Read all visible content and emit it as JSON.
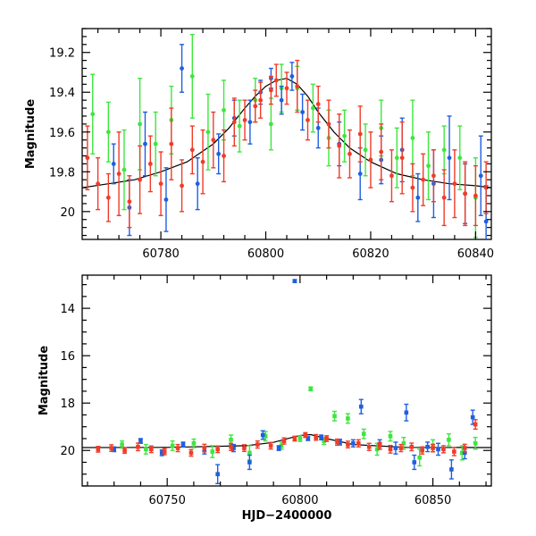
{
  "chart_data": [
    {
      "type": "scatter",
      "panel": "top",
      "title": "",
      "xlabel": "",
      "ylabel": "Magnitude",
      "xlim": [
        60765,
        60843
      ],
      "ylim": [
        20.14,
        19.08
      ],
      "y_inverted": true,
      "xticks": [
        60780,
        60800,
        60820,
        60840
      ],
      "xtick_labels": [
        "60780",
        "60800",
        "60820",
        "60840"
      ],
      "yticks": [
        19.2,
        19.4,
        19.6,
        19.8,
        20
      ],
      "ytick_labels": [
        "19.2",
        "19.4",
        "19.6",
        "19.8",
        "20"
      ],
      "grid": false,
      "colors": {
        "blue": "#1f5fe0",
        "green": "#3ee63e",
        "red": "#f03c28",
        "model": "#000000"
      },
      "model_curve": {
        "name": "",
        "x": [
          60765,
          60770,
          60775,
          60780,
          60785,
          60790,
          60793,
          60796,
          60798,
          60800,
          60802,
          60804,
          60806,
          60808,
          60810,
          60813,
          60816,
          60820,
          60825,
          60830,
          60835,
          60840,
          60843
        ],
        "y": [
          19.88,
          19.86,
          19.84,
          19.8,
          19.75,
          19.66,
          19.58,
          19.48,
          19.42,
          19.37,
          19.34,
          19.33,
          19.36,
          19.42,
          19.5,
          19.6,
          19.68,
          19.75,
          19.81,
          19.84,
          19.86,
          19.87,
          19.88
        ]
      },
      "series": [
        {
          "color": "blue",
          "x": [
            60771,
            60774,
            60777,
            60781,
            60784,
            60787,
            60791,
            60794,
            60797,
            60799,
            60801,
            60803,
            60805,
            60807,
            60810,
            60814,
            60818,
            60822,
            60826,
            60829,
            60832,
            60835,
            60838,
            60841,
            60842
          ],
          "y": [
            19.76,
            19.98,
            19.66,
            19.94,
            19.28,
            19.86,
            19.71,
            19.53,
            19.55,
            19.4,
            19.33,
            19.44,
            19.32,
            19.5,
            19.58,
            19.66,
            19.81,
            19.74,
            19.69,
            19.93,
            19.86,
            19.73,
            19.91,
            19.82,
            20.05
          ],
          "err": [
            0.1,
            0.14,
            0.16,
            0.16,
            0.12,
            0.13,
            0.1,
            0.09,
            0.11,
            0.06,
            0.05,
            0.07,
            0.07,
            0.09,
            0.1,
            0.11,
            0.13,
            0.12,
            0.16,
            0.12,
            0.17,
            0.21,
            0.15,
            0.2,
            0.18
          ]
        },
        {
          "color": "green",
          "x": [
            60767,
            60770,
            60773,
            60776,
            60779,
            60782,
            60786,
            60789,
            60792,
            60795,
            60798,
            60801,
            60803,
            60806,
            60809,
            60812,
            60815,
            60819,
            60822,
            60825,
            60828,
            60831,
            60834,
            60837,
            60840
          ],
          "y": [
            19.51,
            19.6,
            19.79,
            19.56,
            19.66,
            19.54,
            19.32,
            19.6,
            19.49,
            19.57,
            19.44,
            19.56,
            19.38,
            19.38,
            19.48,
            19.63,
            19.62,
            19.69,
            19.58,
            19.73,
            19.63,
            19.77,
            19.69,
            19.73,
            19.93
          ],
          "err": [
            0.2,
            0.15,
            0.2,
            0.23,
            0.16,
            0.17,
            0.21,
            0.19,
            0.15,
            0.13,
            0.11,
            0.13,
            0.12,
            0.11,
            0.12,
            0.14,
            0.13,
            0.13,
            0.14,
            0.15,
            0.19,
            0.17,
            0.12,
            0.16,
            0.2
          ]
        },
        {
          "color": "red",
          "x": [
            60766,
            60768,
            60770,
            60772,
            60774,
            60776,
            60778,
            60780,
            60782,
            60784,
            60786,
            60788,
            60790,
            60792,
            60794,
            60796,
            60798,
            60799,
            60801,
            60802,
            60804,
            60806,
            60808,
            60810,
            60812,
            60814,
            60816,
            60818,
            60820,
            60822,
            60824,
            60826,
            60828,
            60830,
            60832,
            60834,
            60836,
            60838,
            60840,
            60842
          ],
          "y": [
            19.73,
            19.86,
            19.93,
            19.81,
            19.95,
            19.84,
            19.76,
            19.86,
            19.66,
            19.87,
            19.69,
            19.75,
            19.64,
            19.72,
            19.55,
            19.54,
            19.47,
            19.44,
            19.39,
            19.34,
            19.38,
            19.37,
            19.54,
            19.46,
            19.56,
            19.67,
            19.71,
            19.61,
            19.74,
            19.7,
            19.82,
            19.73,
            19.88,
            19.84,
            19.82,
            19.93,
            19.86,
            19.91,
            19.92,
            19.88
          ],
          "err": [
            0.16,
            0.13,
            0.12,
            0.21,
            0.13,
            0.17,
            0.14,
            0.16,
            0.18,
            0.13,
            0.12,
            0.16,
            0.14,
            0.13,
            0.12,
            0.1,
            0.08,
            0.09,
            0.07,
            0.08,
            0.08,
            0.13,
            0.1,
            0.09,
            0.12,
            0.16,
            0.12,
            0.14,
            0.14,
            0.14,
            0.13,
            0.18,
            0.12,
            0.13,
            0.13,
            0.14,
            0.17,
            0.16,
            0.15,
            0.13
          ]
        }
      ]
    },
    {
      "type": "scatter",
      "panel": "bottom",
      "title": "",
      "xlabel": "HJD−2400000",
      "ylabel": "Magnitude",
      "xlim": [
        60718,
        60872
      ],
      "ylim": [
        21.5,
        12.6
      ],
      "y_inverted": true,
      "xticks": [
        60750,
        60800,
        60850
      ],
      "xtick_labels": [
        "60750",
        "60800",
        "60850"
      ],
      "yticks": [
        14,
        16,
        18,
        20
      ],
      "ytick_labels": [
        "14",
        "16",
        "18",
        "20"
      ],
      "grid": false,
      "colors": {
        "blue": "#1f5fe0",
        "green": "#3ee63e",
        "red": "#f03c28",
        "model": "#000000"
      },
      "model_curve": {
        "name": "",
        "x": [
          60718,
          60750,
          60780,
          60790,
          60796,
          60800,
          60804,
          60810,
          60820,
          60840,
          60872
        ],
        "y": [
          19.88,
          19.87,
          19.8,
          19.66,
          19.48,
          19.37,
          19.33,
          19.5,
          19.75,
          19.87,
          19.88
        ]
      },
      "series": [
        {
          "color": "blue",
          "x": [
            60730,
            60740,
            60748,
            60756,
            60764,
            60769,
            60775,
            60781,
            60786,
            60792,
            60798,
            60803,
            60808,
            60815,
            60820,
            60823,
            60830,
            60836,
            60840,
            60843,
            60848,
            60852,
            60857,
            60862,
            60865
          ],
          "y": [
            19.95,
            19.6,
            20.1,
            19.75,
            20.0,
            21.0,
            19.9,
            20.5,
            19.35,
            19.9,
            12.85,
            19.5,
            19.45,
            19.65,
            19.7,
            18.15,
            19.75,
            19.9,
            18.4,
            20.5,
            19.85,
            19.95,
            20.8,
            20.1,
            18.6
          ],
          "err": [
            0.1,
            0.1,
            0.12,
            0.1,
            0.15,
            0.4,
            0.15,
            0.3,
            0.18,
            0.1,
            0.06,
            0.08,
            0.1,
            0.12,
            0.15,
            0.3,
            0.2,
            0.25,
            0.35,
            0.3,
            0.2,
            0.25,
            0.4,
            0.25,
            0.3
          ]
        },
        {
          "color": "green",
          "x": [
            60733,
            60742,
            60752,
            60760,
            60767,
            60774,
            60781,
            60787,
            60793,
            60800,
            60804,
            60809,
            60813,
            60818,
            60824,
            60829,
            60834,
            60839,
            60845,
            60850,
            60856,
            60861,
            60866
          ],
          "y": [
            19.75,
            19.95,
            19.8,
            19.7,
            20.05,
            19.55,
            20.1,
            19.4,
            19.8,
            19.5,
            17.4,
            19.6,
            18.55,
            18.65,
            19.3,
            19.95,
            19.4,
            19.7,
            20.3,
            19.8,
            19.55,
            20.1,
            19.7
          ],
          "err": [
            0.15,
            0.2,
            0.2,
            0.18,
            0.25,
            0.2,
            0.3,
            0.2,
            0.15,
            0.12,
            0.08,
            0.15,
            0.2,
            0.2,
            0.2,
            0.25,
            0.2,
            0.25,
            0.35,
            0.25,
            0.25,
            0.3,
            0.25
          ]
        },
        {
          "color": "red",
          "x": [
            60724,
            60729,
            60734,
            60739,
            60744,
            60749,
            60754,
            60759,
            60764,
            60769,
            60774,
            60779,
            60784,
            60789,
            60794,
            60798,
            60802,
            60806,
            60810,
            60814,
            60818,
            60822,
            60826,
            60830,
            60834,
            60838,
            60842,
            60846,
            60850,
            60854,
            60858,
            60862,
            60866
          ],
          "y": [
            19.95,
            19.9,
            20.0,
            19.85,
            19.95,
            20.05,
            19.9,
            20.1,
            19.9,
            19.95,
            19.85,
            19.9,
            19.75,
            19.8,
            19.6,
            19.5,
            19.35,
            19.45,
            19.5,
            19.65,
            19.75,
            19.7,
            19.85,
            19.8,
            19.95,
            19.9,
            19.85,
            20.0,
            19.9,
            19.95,
            20.05,
            19.9,
            18.9
          ],
          "err": [
            0.12,
            0.14,
            0.12,
            0.16,
            0.14,
            0.13,
            0.15,
            0.14,
            0.16,
            0.14,
            0.15,
            0.14,
            0.15,
            0.14,
            0.13,
            0.1,
            0.1,
            0.12,
            0.12,
            0.13,
            0.14,
            0.15,
            0.15,
            0.14,
            0.16,
            0.15,
            0.16,
            0.15,
            0.16,
            0.15,
            0.17,
            0.16,
            0.2
          ]
        }
      ]
    }
  ]
}
